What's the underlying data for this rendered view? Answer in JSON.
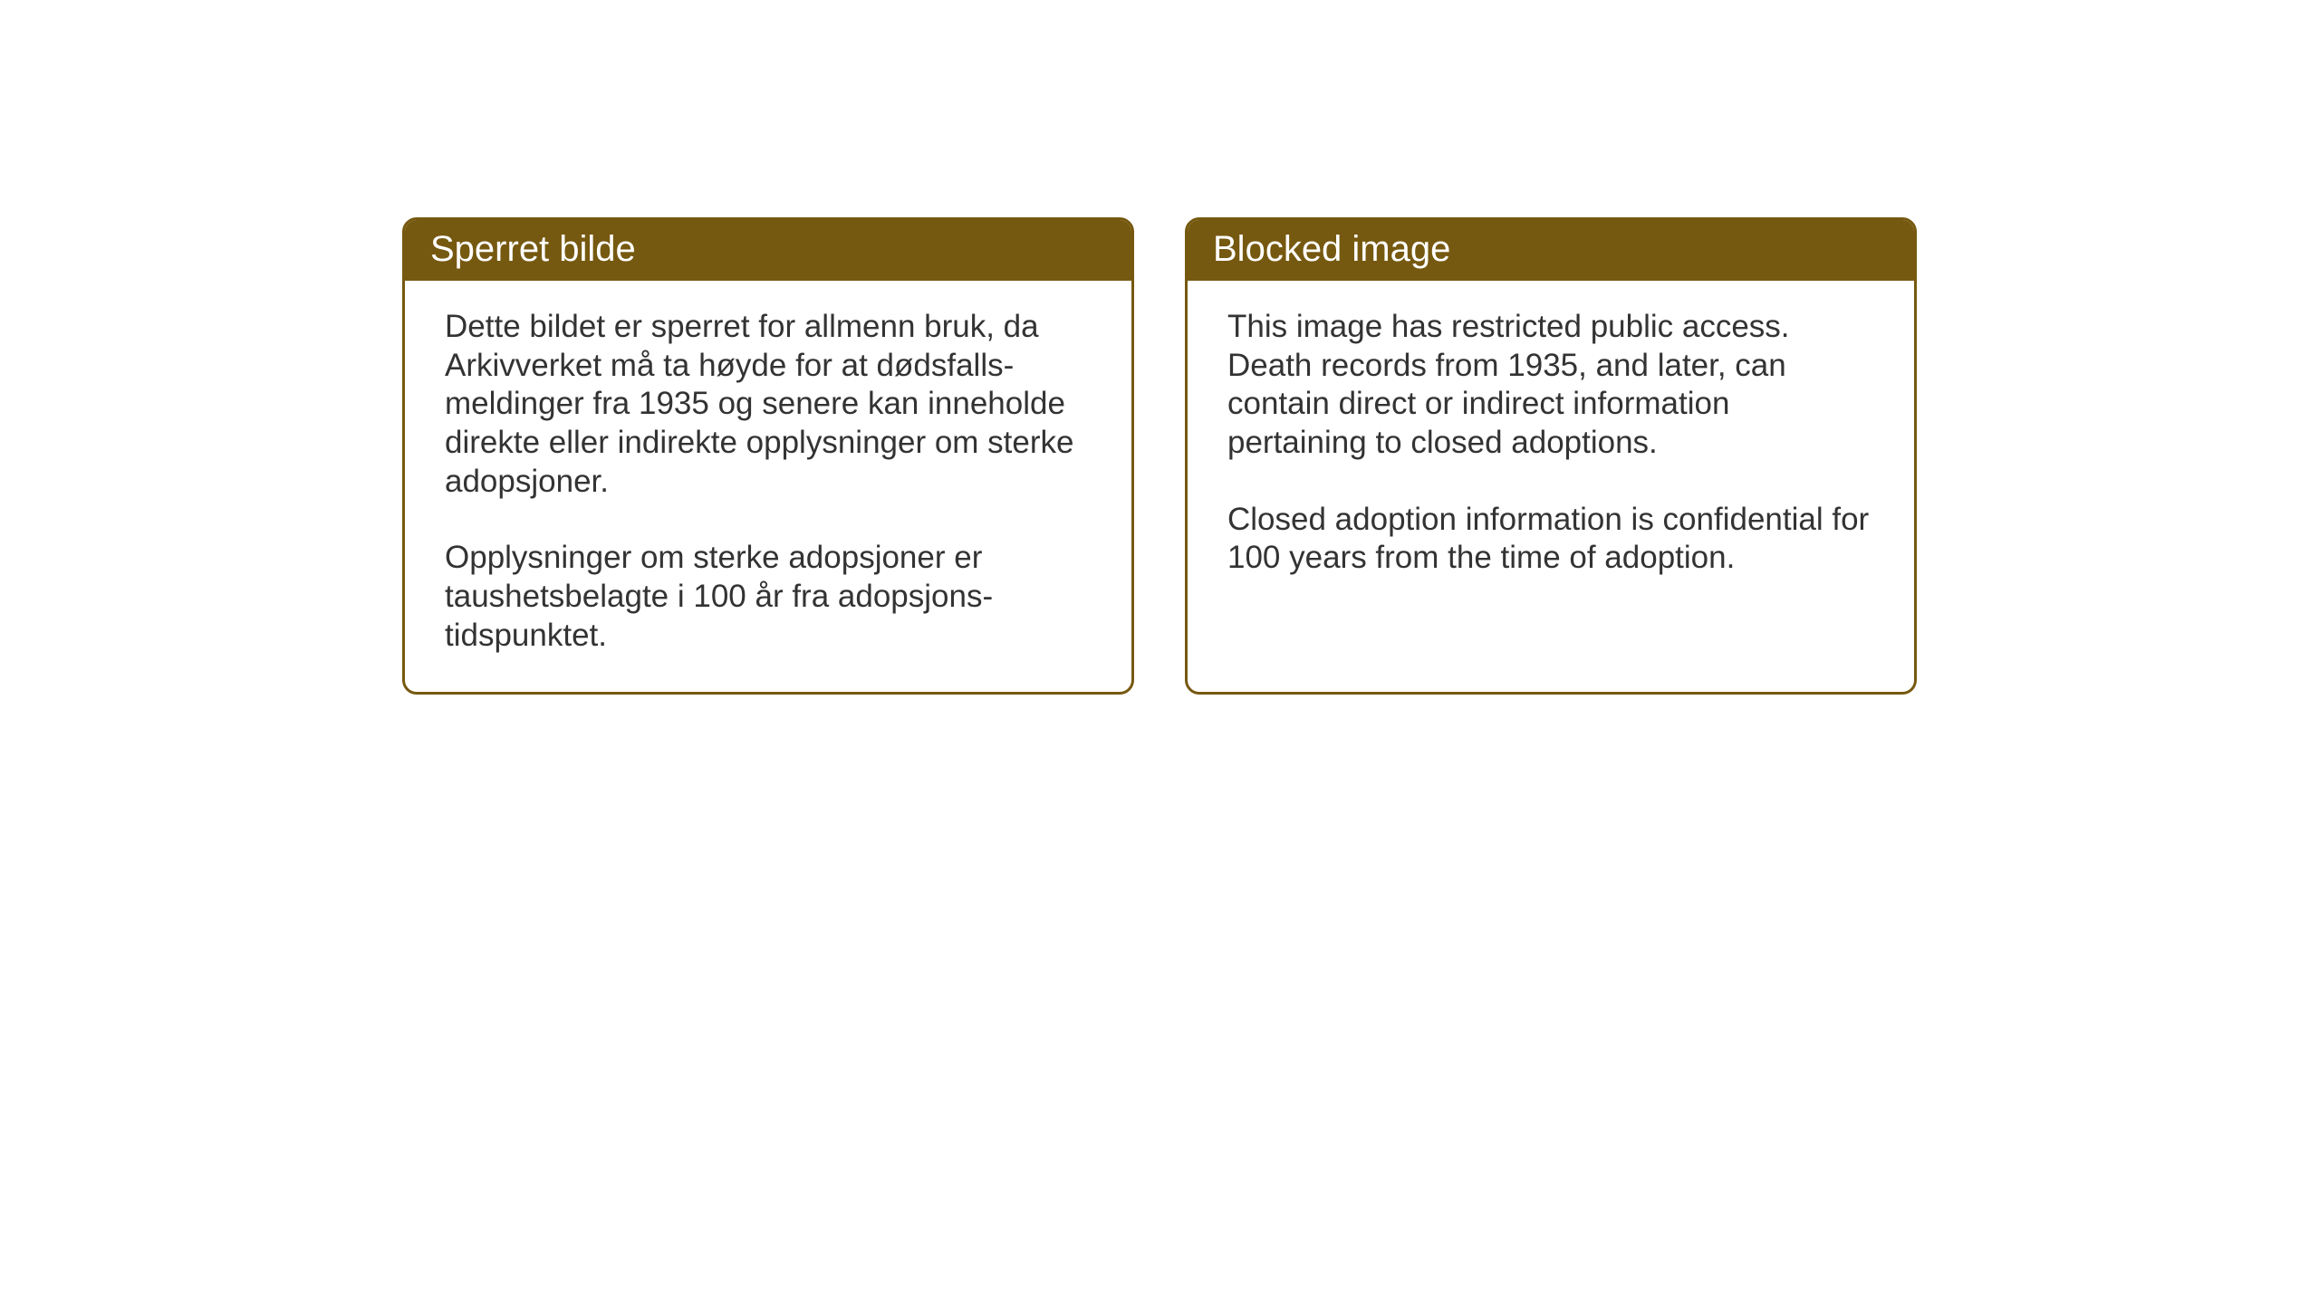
{
  "cards": {
    "norwegian": {
      "title": "Sperret bilde",
      "paragraph1": "Dette bildet er sperret for allmenn bruk, da Arkivverket må ta høyde for at dødsfalls-meldinger fra 1935 og senere kan inneholde direkte eller indirekte opplysninger om sterke adopsjoner.",
      "paragraph2": "Opplysninger om sterke adopsjoner er taushetsbelagte i 100 år fra adopsjons-tidspunktet."
    },
    "english": {
      "title": "Blocked image",
      "paragraph1": "This image has restricted public access. Death records from 1935, and later, can contain direct or indirect information pertaining to closed adoptions.",
      "paragraph2": "Closed adoption information is confidential for 100 years from the time of adoption."
    }
  },
  "styling": {
    "header_bg_color": "#765910",
    "header_text_color": "#ffffff",
    "border_color": "#765910",
    "body_text_color": "#333333",
    "background_color": "#ffffff",
    "border_radius": 16,
    "title_fontsize": 40,
    "body_fontsize": 35
  }
}
